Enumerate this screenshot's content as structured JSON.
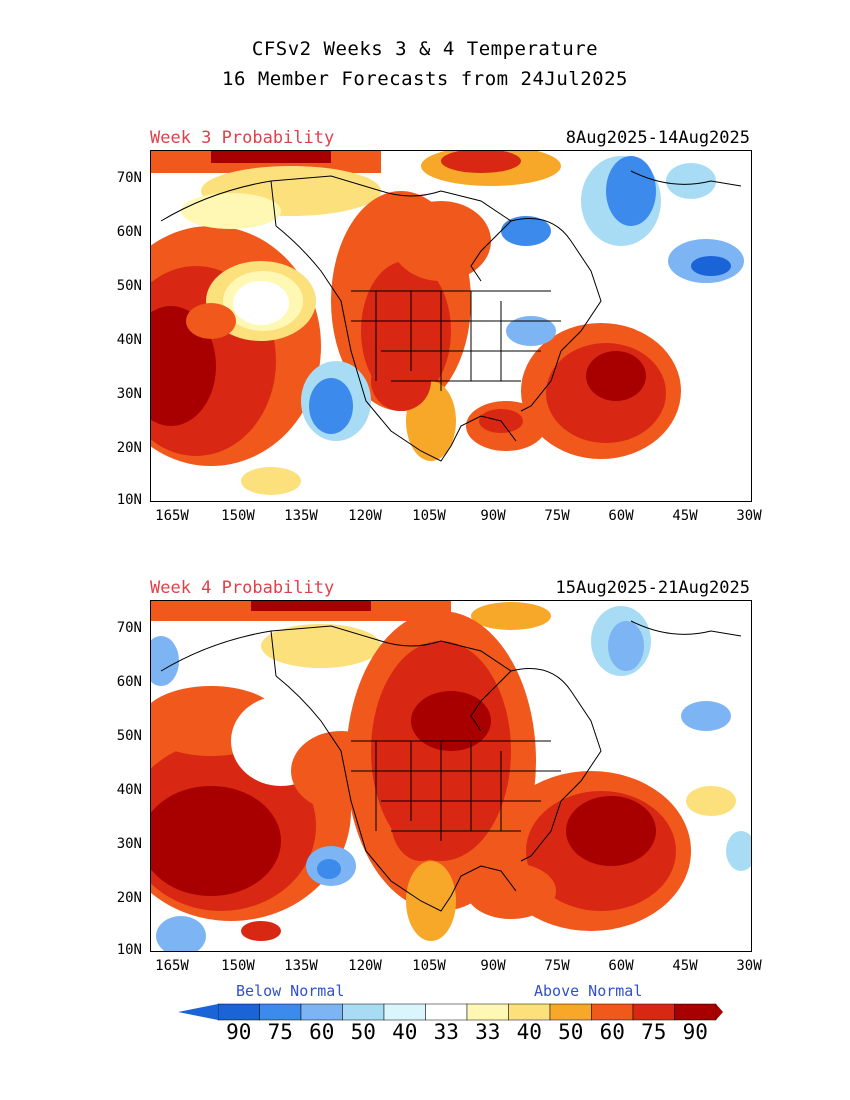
{
  "header": {
    "title_line1": "CFSv2 Weeks 3 & 4 Temperature",
    "title_line2": "16 Member Forecasts from 24Jul2025"
  },
  "panels": [
    {
      "label": "Week 3 Probability",
      "dates": "8Aug2025-14Aug2025"
    },
    {
      "label": "Week 4 Probability",
      "dates": "15Aug2025-21Aug2025"
    }
  ],
  "axes": {
    "y_ticks": [
      "70N",
      "60N",
      "50N",
      "40N",
      "30N",
      "20N",
      "10N"
    ],
    "x_ticks": [
      "165W",
      "150W",
      "135W",
      "120W",
      "105W",
      "90W",
      "75W",
      "60W",
      "45W",
      "30W"
    ]
  },
  "legend": {
    "below_label": "Below Normal",
    "above_label": "Above Normal",
    "values": [
      "90",
      "75",
      "60",
      "50",
      "40",
      "33",
      "33",
      "40",
      "50",
      "60",
      "75",
      "90"
    ],
    "colors": [
      "#1a64d8",
      "#3c8aec",
      "#7cb4f4",
      "#a8dcf4",
      "#d8f6fc",
      "#ffffff",
      "#fff8b4",
      "#fce07c",
      "#f8a828",
      "#f0581c",
      "#d82814",
      "#a80000"
    ]
  }
}
